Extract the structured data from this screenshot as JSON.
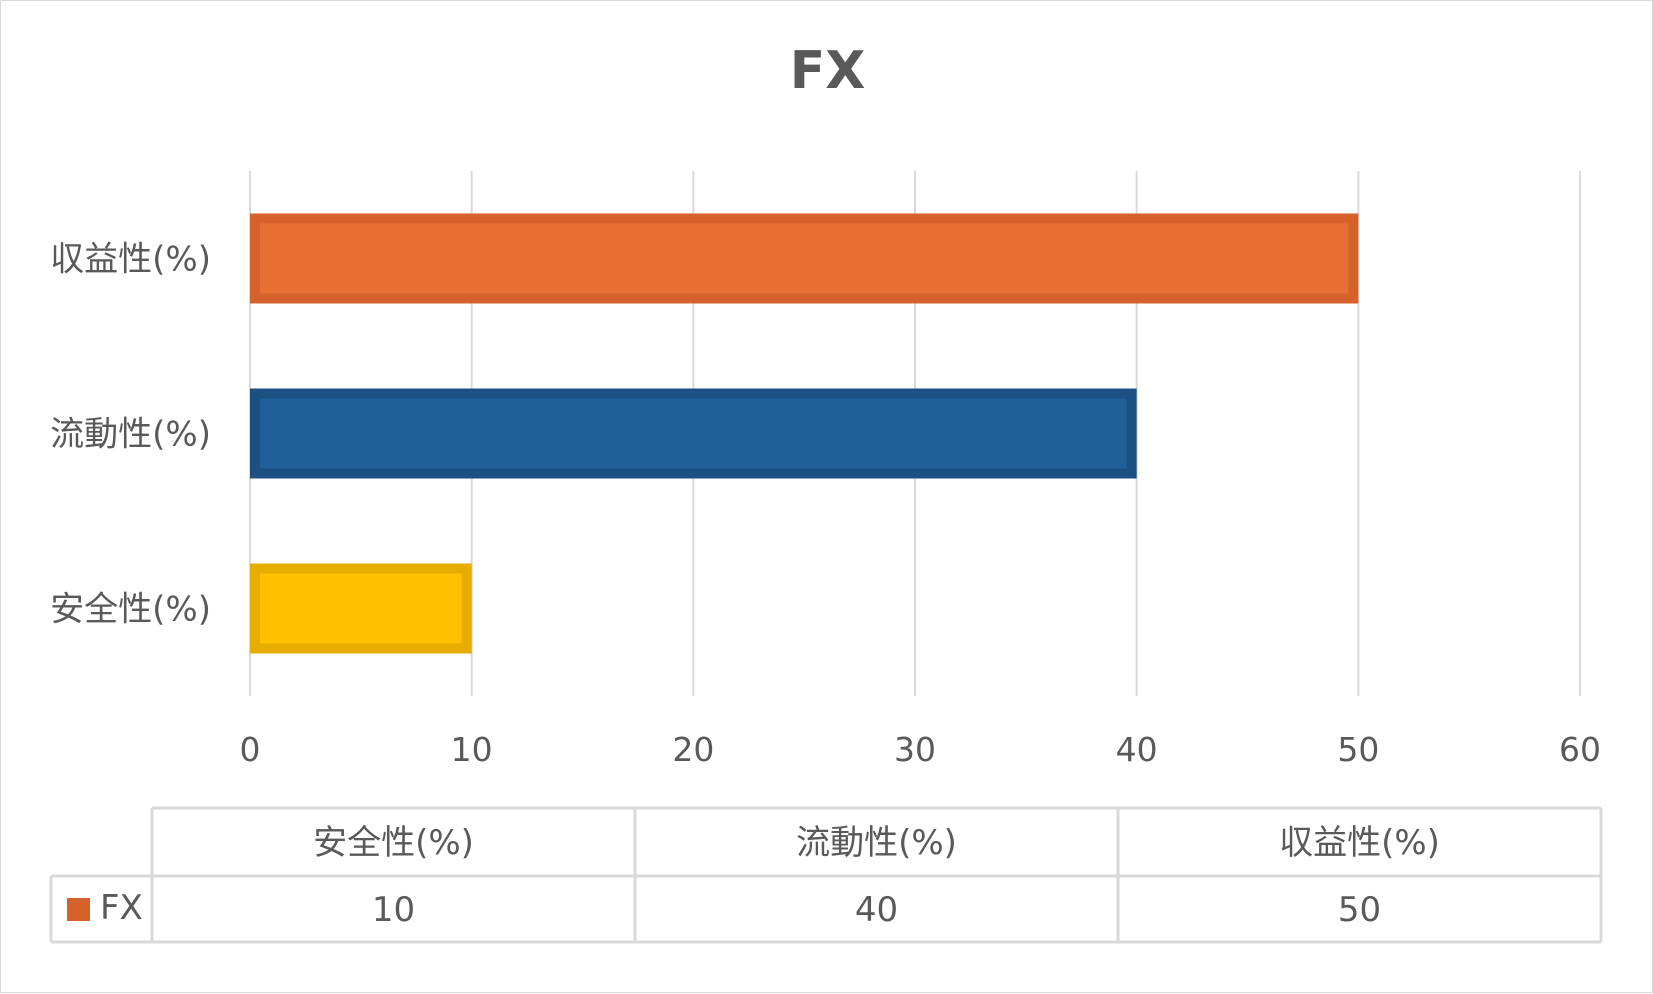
{
  "chart_data": {
    "type": "bar",
    "orientation": "horizontal",
    "title": "FX",
    "categories": [
      "安全性(%)",
      "流動性(%)",
      "収益性(%)"
    ],
    "series": [
      {
        "name": "FX",
        "values": [
          10,
          40,
          50
        ],
        "color": "#d4622a"
      }
    ],
    "bar_colors": [
      "#ffc000",
      "#1f5f9a",
      "#e86f33"
    ],
    "bar_border_colors": [
      "#e6ac00",
      "#1c4f82",
      "#d4622a"
    ],
    "xlim": [
      0,
      60
    ],
    "xticks": [
      0,
      10,
      20,
      30,
      40,
      50,
      60
    ],
    "grid": true,
    "legend": "data-table",
    "data_table": {
      "headers": [
        "安全性(%)",
        "流動性(%)",
        "収益性(%)"
      ],
      "rows": [
        {
          "label": "FX",
          "values": [
            "10",
            "40",
            "50"
          ]
        }
      ]
    }
  }
}
